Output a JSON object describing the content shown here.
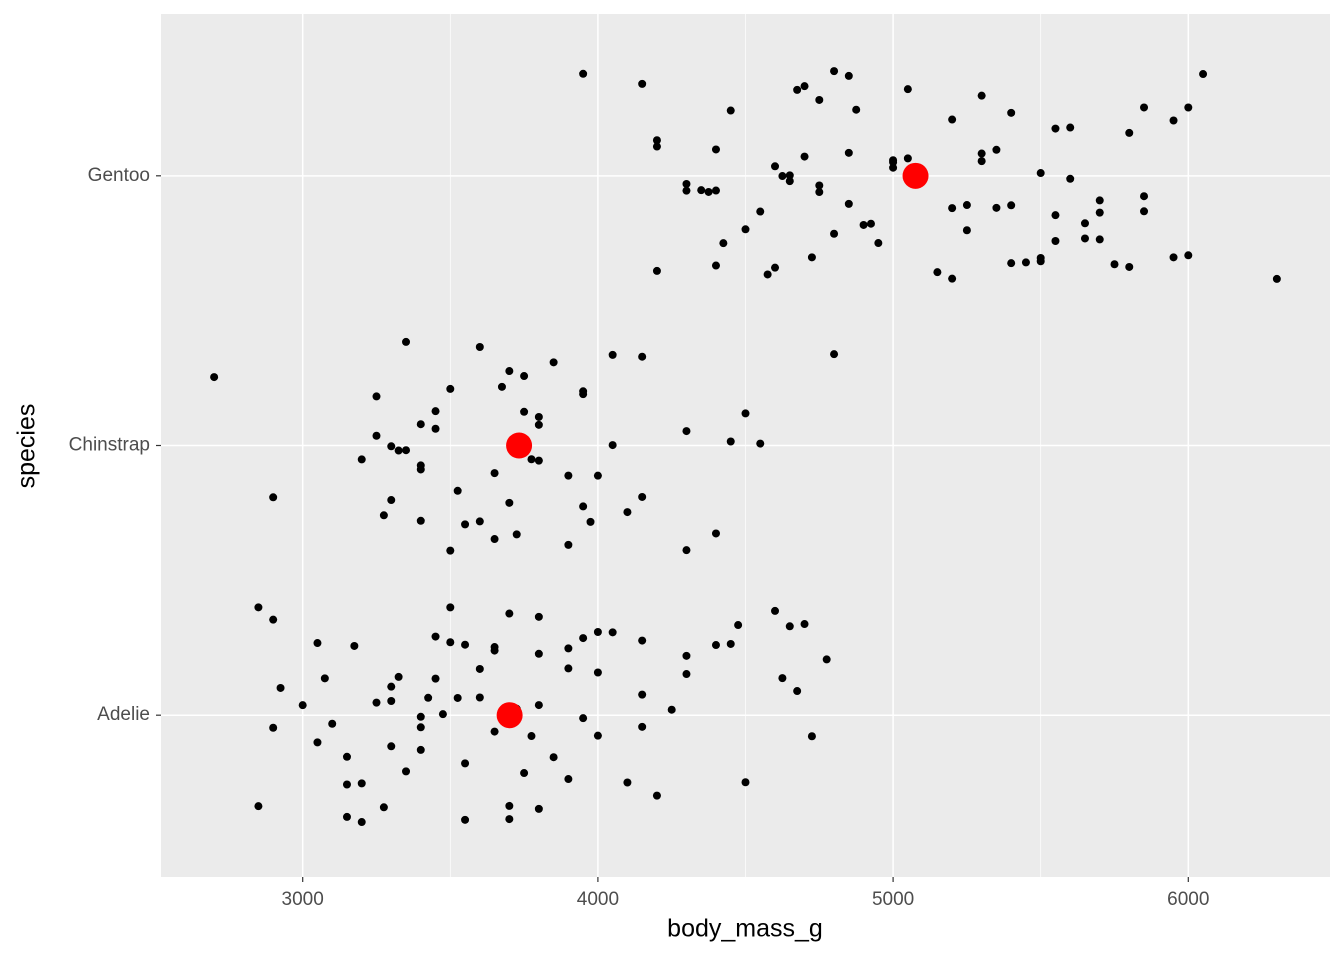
{
  "chart_data": {
    "type": "strip",
    "x_label": "body_mass_g",
    "y_label": "species",
    "categories": [
      "Adelie",
      "Chinstrap",
      "Gentoo"
    ],
    "values": [
      [
        2850,
        2850,
        2900,
        2900,
        2925,
        3000,
        3050,
        3050,
        3075,
        3100,
        3150,
        3150,
        3175,
        3200,
        3200,
        3250,
        3275,
        3300,
        3300,
        3325,
        3350,
        3400,
        3400,
        3425,
        3450,
        3450,
        3475,
        3500,
        3500,
        3525,
        3550,
        3550,
        3600,
        3600,
        3650,
        3650,
        3700,
        3700,
        3725,
        3750,
        3775,
        3800,
        3800,
        3800,
        3850,
        3900,
        3900,
        3950,
        3950,
        4000,
        4000,
        4050,
        4100,
        4150,
        4150,
        4200,
        4250,
        4300,
        4300,
        4400,
        4450,
        4475,
        4500,
        4600,
        4650,
        4700,
        4725,
        4775,
        4675,
        4625,
        3300,
        3400,
        3550,
        3700,
        3900,
        4000,
        4150,
        3150,
        3650,
        3800
      ],
      [
        2700,
        2900,
        3200,
        3250,
        3250,
        3275,
        3300,
        3300,
        3325,
        3350,
        3350,
        3400,
        3400,
        3400,
        3400,
        3450,
        3450,
        3500,
        3500,
        3525,
        3550,
        3600,
        3600,
        3650,
        3650,
        3675,
        3700,
        3700,
        3725,
        3750,
        3750,
        3775,
        3800,
        3800,
        3800,
        3850,
        3900,
        3900,
        3950,
        3950,
        3950,
        3975,
        4000,
        4050,
        4050,
        4100,
        4150,
        4150,
        4300,
        4300,
        4400,
        4450,
        4500,
        4550,
        4800
      ],
      [
        3950,
        4150,
        4200,
        4200,
        4200,
        4300,
        4300,
        4350,
        4375,
        4400,
        4400,
        4400,
        4425,
        4450,
        4500,
        4550,
        4575,
        4600,
        4600,
        4625,
        4650,
        4650,
        4675,
        4700,
        4700,
        4725,
        4750,
        4750,
        4750,
        4800,
        4800,
        4850,
        4850,
        4850,
        4875,
        4900,
        4925,
        4950,
        5000,
        5000,
        5000,
        5050,
        5050,
        5100,
        5100,
        5150,
        5200,
        5200,
        5200,
        5250,
        5250,
        5300,
        5300,
        5300,
        5350,
        5350,
        5400,
        5400,
        5400,
        5450,
        5500,
        5500,
        5500,
        5550,
        5550,
        5550,
        5600,
        5600,
        5650,
        5650,
        5700,
        5700,
        5700,
        5750,
        5800,
        5800,
        5850,
        5850,
        5850,
        5950,
        5950,
        6000,
        6000,
        6050,
        6300
      ]
    ],
    "color": "#000000",
    "means": [
      3701,
      3733,
      5076
    ],
    "mean_color": "#ff0000",
    "xlim": [
      2520,
      6480
    ],
    "xticks": [
      3000,
      4000,
      5000,
      6000
    ],
    "grid": true
  }
}
